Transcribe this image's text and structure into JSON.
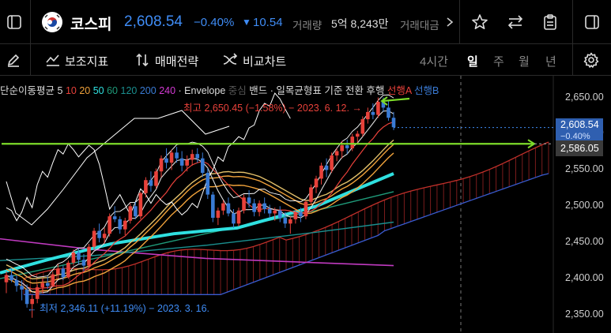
{
  "header": {
    "name": "코스피",
    "price": "2,608.54",
    "change_pct": "−0.40%",
    "change_arrow": "▼",
    "change_abs": "10.54",
    "volume_label": "거래량",
    "volume_value": "5억 8,243만",
    "amount_label": "거래대금",
    "more_icon": "chevron-right-icon"
  },
  "toolbar": {
    "indicators_label": "보조지표",
    "strategy_label": "매매전략",
    "compare_label": "비교차트",
    "periods": [
      "4시간",
      "일",
      "주",
      "월",
      "년"
    ],
    "active_period": "일"
  },
  "legend": {
    "ma_label": "단순이동평균",
    "ma_periods": [
      {
        "v": "5",
        "color": "#dddddd"
      },
      {
        "v": "10",
        "color": "#e8413a"
      },
      {
        "v": "20",
        "color": "#f0a23b"
      },
      {
        "v": "50",
        "color": "#2fe0e0"
      },
      {
        "v": "60",
        "color": "#1f9b7a"
      },
      {
        "v": "120",
        "color": "#1a8f8f"
      },
      {
        "v": "200",
        "color": "#3a7bd5"
      },
      {
        "v": "240",
        "color": "#d33ad3"
      }
    ],
    "envelope": "· Envelope",
    "envelope_mid": "중심",
    "band": "밴드",
    "ichimoku": "· 일목균형표",
    "ichimoku_base": "기준",
    "ichimoku_conv": "전환",
    "ichimoku_lag": "후행",
    "lead_a": "선행A",
    "lead_b": "선행B"
  },
  "annotations": {
    "high": "최고 2,650.45 (−1.58%) − 2023. 6. 12. →",
    "low": "← 최저 2,346.11 (+11.19%) − 2023. 3. 16."
  },
  "y_axis": {
    "labels": [
      "2,650.00",
      "2,600.00",
      "2,550.00",
      "2,500.00",
      "2,450.00",
      "2,400.00",
      "2,350.00"
    ],
    "current_price": "2,608.54",
    "current_change": "−0.40%",
    "line_price": "2,586.05"
  },
  "colors": {
    "up": "#e8413a",
    "down": "#3a7bd5",
    "accent": "#2f7df6",
    "green_line": "#7ddc2a"
  },
  "chart_data": {
    "type": "candlestick",
    "candles": [
      [
        2395,
        2410,
        2380,
        2405
      ],
      [
        2405,
        2415,
        2395,
        2398
      ],
      [
        2398,
        2404,
        2382,
        2390
      ],
      [
        2390,
        2398,
        2370,
        2385
      ],
      [
        2385,
        2392,
        2360,
        2365
      ],
      [
        2365,
        2378,
        2346,
        2372
      ],
      [
        2372,
        2392,
        2366,
        2388
      ],
      [
        2388,
        2400,
        2380,
        2394
      ],
      [
        2394,
        2403,
        2386,
        2390
      ],
      [
        2390,
        2410,
        2388,
        2406
      ],
      [
        2406,
        2420,
        2400,
        2414
      ],
      [
        2414,
        2418,
        2398,
        2402
      ],
      [
        2402,
        2425,
        2400,
        2422
      ],
      [
        2422,
        2440,
        2418,
        2436
      ],
      [
        2436,
        2442,
        2420,
        2426
      ],
      [
        2426,
        2434,
        2410,
        2418
      ],
      [
        2418,
        2448,
        2416,
        2444
      ],
      [
        2444,
        2470,
        2440,
        2466
      ],
      [
        2466,
        2476,
        2450,
        2456
      ],
      [
        2456,
        2470,
        2448,
        2462
      ],
      [
        2462,
        2490,
        2458,
        2486
      ],
      [
        2486,
        2500,
        2478,
        2482
      ],
      [
        2482,
        2486,
        2462,
        2468
      ],
      [
        2468,
        2484,
        2460,
        2480
      ],
      [
        2480,
        2504,
        2476,
        2500
      ],
      [
        2500,
        2506,
        2482,
        2486
      ],
      [
        2486,
        2520,
        2482,
        2518
      ],
      [
        2518,
        2540,
        2512,
        2536
      ],
      [
        2536,
        2548,
        2520,
        2528
      ],
      [
        2528,
        2552,
        2524,
        2548
      ],
      [
        2548,
        2570,
        2540,
        2566
      ],
      [
        2566,
        2580,
        2552,
        2560
      ],
      [
        2560,
        2578,
        2550,
        2574
      ],
      [
        2574,
        2582,
        2560,
        2566
      ],
      [
        2566,
        2576,
        2548,
        2556
      ],
      [
        2556,
        2570,
        2548,
        2564
      ],
      [
        2564,
        2578,
        2556,
        2572
      ],
      [
        2572,
        2580,
        2560,
        2566
      ],
      [
        2566,
        2574,
        2540,
        2546
      ],
      [
        2546,
        2552,
        2510,
        2516
      ],
      [
        2516,
        2520,
        2478,
        2484
      ],
      [
        2484,
        2498,
        2474,
        2494
      ],
      [
        2494,
        2508,
        2488,
        2504
      ],
      [
        2504,
        2512,
        2486,
        2490
      ],
      [
        2490,
        2496,
        2470,
        2476
      ],
      [
        2476,
        2498,
        2472,
        2494
      ],
      [
        2494,
        2516,
        2490,
        2512
      ],
      [
        2512,
        2522,
        2498,
        2504
      ],
      [
        2504,
        2510,
        2486,
        2492
      ],
      [
        2492,
        2508,
        2486,
        2504
      ],
      [
        2504,
        2512,
        2490,
        2496
      ],
      [
        2496,
        2502,
        2484,
        2490
      ],
      [
        2490,
        2498,
        2480,
        2494
      ],
      [
        2494,
        2500,
        2478,
        2484
      ],
      [
        2484,
        2492,
        2470,
        2476
      ],
      [
        2476,
        2486,
        2462,
        2482
      ],
      [
        2482,
        2496,
        2476,
        2492
      ],
      [
        2492,
        2498,
        2478,
        2486
      ],
      [
        2486,
        2508,
        2482,
        2506
      ],
      [
        2506,
        2530,
        2502,
        2526
      ],
      [
        2526,
        2542,
        2518,
        2538
      ],
      [
        2538,
        2560,
        2530,
        2556
      ],
      [
        2556,
        2566,
        2540,
        2550
      ],
      [
        2550,
        2574,
        2546,
        2570
      ],
      [
        2570,
        2580,
        2562,
        2576
      ],
      [
        2576,
        2590,
        2566,
        2584
      ],
      [
        2584,
        2592,
        2572,
        2580
      ],
      [
        2580,
        2600,
        2576,
        2596
      ],
      [
        2596,
        2604,
        2588,
        2600
      ],
      [
        2600,
        2624,
        2596,
        2620
      ],
      [
        2620,
        2636,
        2614,
        2630
      ],
      [
        2630,
        2642,
        2620,
        2626
      ],
      [
        2626,
        2650,
        2622,
        2644
      ],
      [
        2644,
        2650,
        2630,
        2636
      ],
      [
        2636,
        2646,
        2618,
        2622
      ],
      [
        2622,
        2630,
        2605,
        2609
      ]
    ],
    "ylim": [
      2325,
      2680
    ],
    "green_level": 2586.05
  }
}
